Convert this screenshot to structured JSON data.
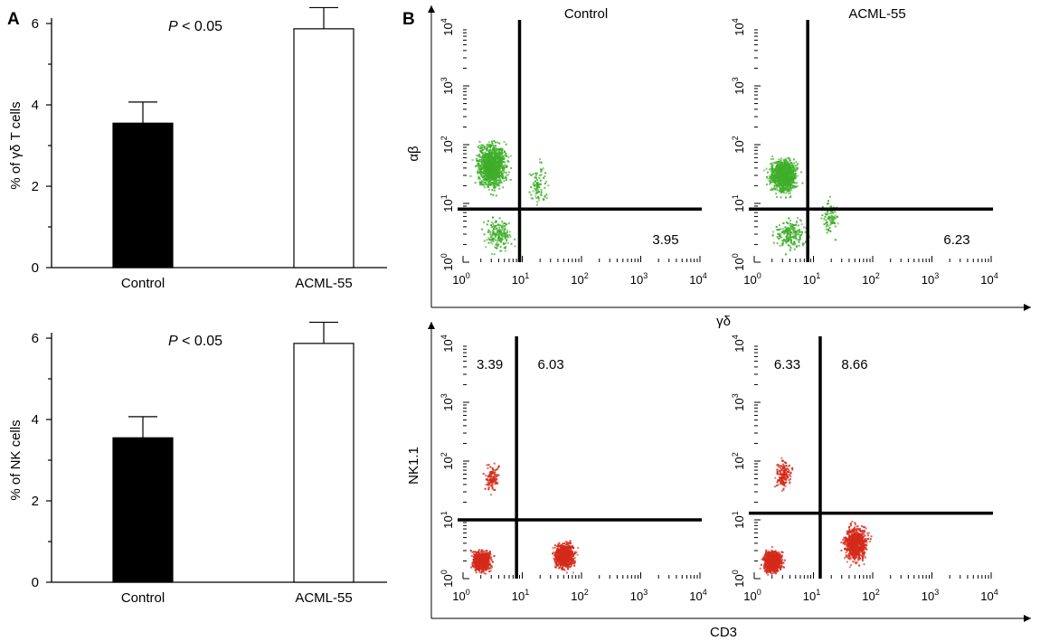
{
  "panel_labels": {
    "a": "A",
    "b": "B"
  },
  "colors": {
    "bar_control": "#000000",
    "bar_acml": "#ffffff",
    "green_dots": "#3fae2a",
    "red_dots": "#d42a1a"
  },
  "chart_data": [
    {
      "type": "bar",
      "panel": "A-top",
      "categories": [
        "Control",
        "ACML-55"
      ],
      "values": [
        3.55,
        5.87
      ],
      "errors": [
        0.52,
        0.52
      ],
      "ylabel": "% of γδ T cells",
      "ylim": [
        0,
        6
      ],
      "yticks": [
        0,
        2,
        4,
        6
      ],
      "annotation": {
        "italic": "P",
        "rest": " < 0.05"
      }
    },
    {
      "type": "bar",
      "panel": "A-bottom",
      "categories": [
        "Control",
        "ACML-55"
      ],
      "values": [
        3.55,
        5.87
      ],
      "errors": [
        0.52,
        0.52
      ],
      "ylabel": "% of NK cells",
      "ylim": [
        0,
        6
      ],
      "yticks": [
        0,
        2,
        4,
        6
      ],
      "annotation": {
        "italic": "P",
        "rest": " < 0.05"
      }
    },
    {
      "type": "scatter",
      "panel": "B-top",
      "scale": "log",
      "xlim": [
        1,
        10000
      ],
      "ylim": [
        1,
        10000
      ],
      "xlabel": "γδ",
      "ylabel": "αβ",
      "ticks": [
        {
          "b": "10",
          "e": "0"
        },
        {
          "b": "10",
          "e": "1"
        },
        {
          "b": "10",
          "e": "2"
        },
        {
          "b": "10",
          "e": "3"
        },
        {
          "b": "10",
          "e": "4"
        }
      ],
      "plots": [
        {
          "title": "Control",
          "gate_x": 9,
          "gate_y": 8,
          "quadrants": [
            {
              "value": "3.95",
              "where": "lower-right"
            }
          ]
        },
        {
          "title": "ACML-55",
          "gate_x": 8,
          "gate_y": 8,
          "quadrants": [
            {
              "value": "6.23",
              "where": "lower-right"
            }
          ]
        }
      ]
    },
    {
      "type": "scatter",
      "panel": "B-bottom",
      "scale": "log",
      "xlim": [
        1,
        10000
      ],
      "ylim": [
        1,
        10000
      ],
      "xlabel": "CD3",
      "ylabel": "NK1.1",
      "ticks": [
        {
          "b": "10",
          "e": "0"
        },
        {
          "b": "10",
          "e": "1"
        },
        {
          "b": "10",
          "e": "2"
        },
        {
          "b": "10",
          "e": "3"
        },
        {
          "b": "10",
          "e": "4"
        }
      ],
      "plots": [
        {
          "title": "",
          "gate_x": 8,
          "gate_y": 10,
          "quadrants": [
            {
              "value": "3.39",
              "where": "upper-left"
            },
            {
              "value": "6.03",
              "where": "upper-right"
            }
          ]
        },
        {
          "title": "",
          "gate_x": 13,
          "gate_y": 13,
          "quadrants": [
            {
              "value": "6.33",
              "where": "upper-left"
            },
            {
              "value": "8.66",
              "where": "upper-right"
            }
          ]
        }
      ]
    }
  ]
}
